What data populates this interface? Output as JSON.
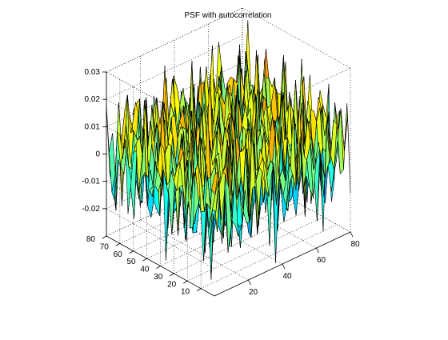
{
  "chart_data": {
    "type": "surface",
    "title": "PSF with autocorrelation",
    "xlabel": "",
    "ylabel": "",
    "zlabel": "",
    "xlim": [
      0,
      80
    ],
    "ylim": [
      0,
      80
    ],
    "zlim": [
      -0.03,
      0.03
    ],
    "x_ticks": [
      "20",
      "40",
      "60",
      "80"
    ],
    "x_tick_values": [
      20,
      40,
      60,
      80
    ],
    "y_ticks": [
      "10",
      "20",
      "30",
      "40",
      "50",
      "60",
      "70",
      "80"
    ],
    "y_tick_values": [
      10,
      20,
      30,
      40,
      50,
      60,
      70,
      80
    ],
    "z_ticks": [
      "0.03",
      "0.02",
      "0.01",
      "0",
      "-0.01",
      "-0.02"
    ],
    "z_tick_values": [
      0.03,
      0.02,
      0.01,
      0,
      -0.01,
      -0.02
    ],
    "grid": true,
    "colormap": "jet",
    "surface_description": "high-frequency oscillating surface with values roughly between -0.03 and 0.03 across an 80 by 80 grid"
  },
  "colors": {
    "background": "#ffffff",
    "axis": "#000000",
    "grid": "#000000",
    "edge": "#000000"
  }
}
